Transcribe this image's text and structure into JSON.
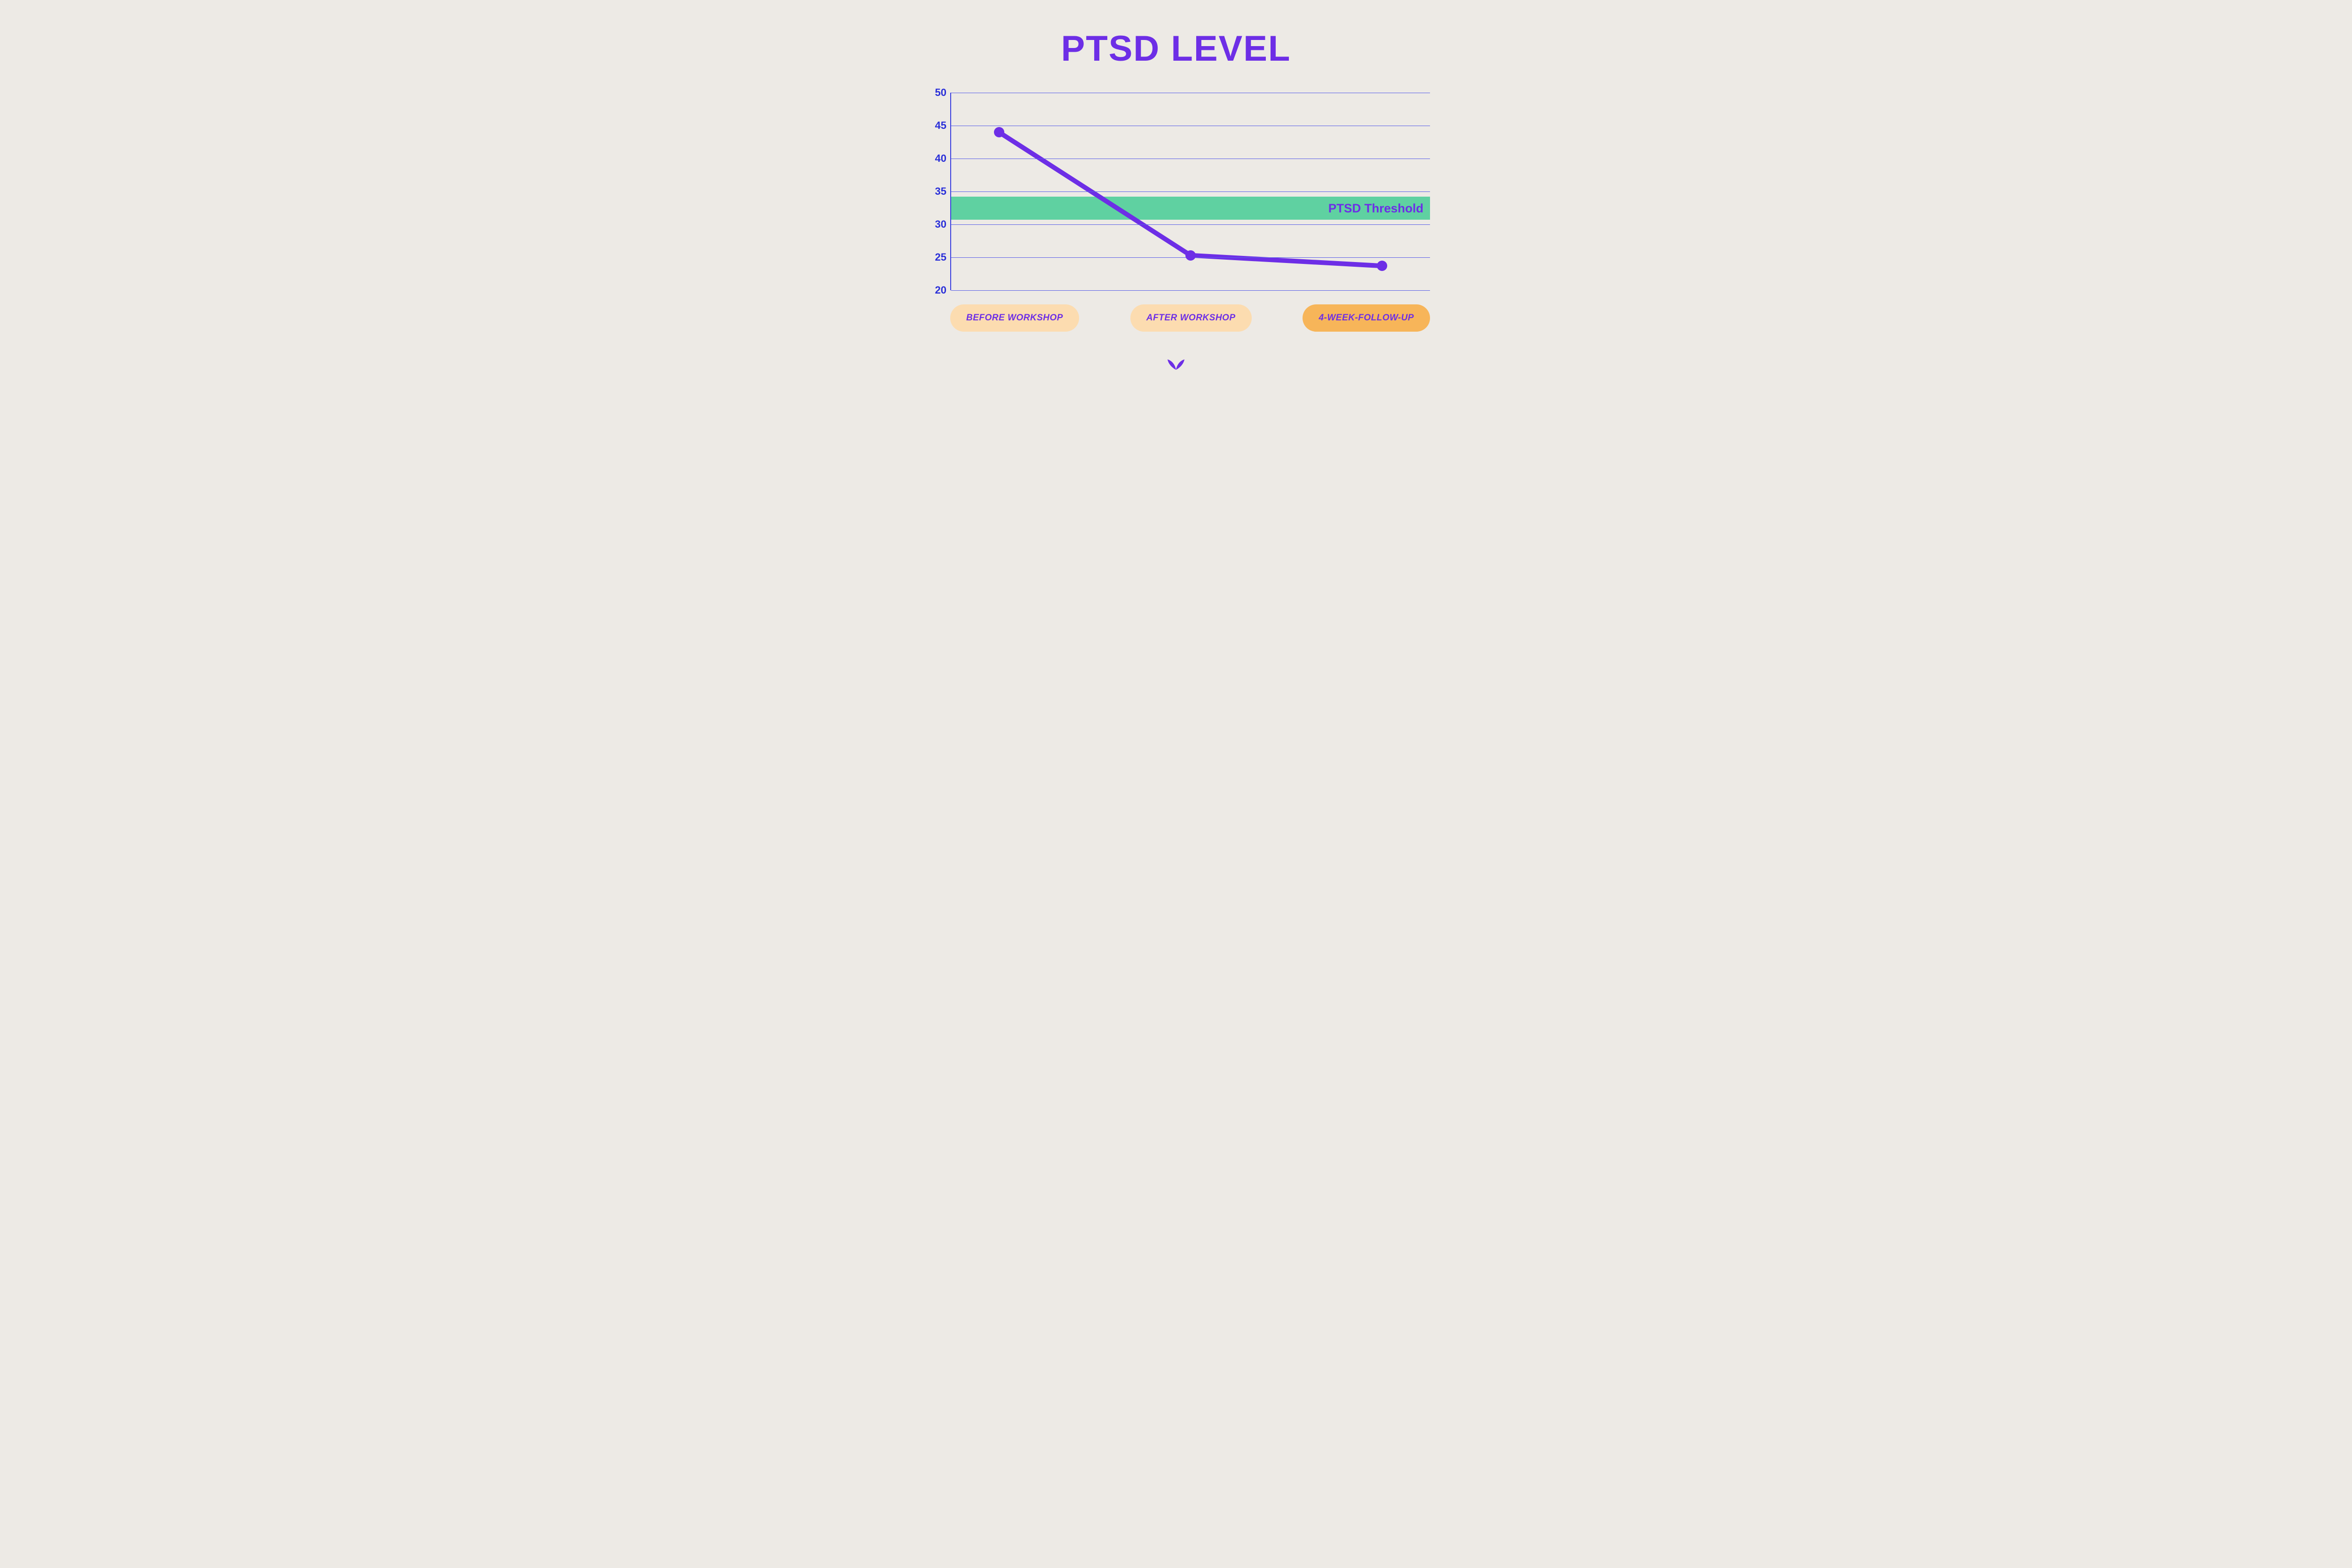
{
  "title": "PTSD LEVEL",
  "chart": {
    "type": "line",
    "background_color": "#edeae5",
    "grid_color": "#5a5fe8",
    "axis_color": "#3b3fe0",
    "ytick_color": "#2a2fd8",
    "ytick_fontsize": 22,
    "ylim": [
      20,
      50
    ],
    "ytick_step": 5,
    "yticks": [
      20,
      25,
      30,
      35,
      40,
      45,
      50
    ],
    "categories": [
      "BEFORE WORKSHOP",
      "AFTER WORKSHOP",
      "4-WEEK-FOLLOW-UP"
    ],
    "values": [
      44.0,
      25.3,
      23.7
    ],
    "x_positions_pct": [
      10,
      50,
      90
    ],
    "line_color": "#6d2ee6",
    "line_width": 10,
    "marker_color": "#6d2ee6",
    "marker_radius": 11,
    "threshold": {
      "label": "PTSD Threshold",
      "y_low": 30.7,
      "y_high": 34.2,
      "band_color": "#5fd1a1",
      "label_color": "#6d2ee6",
      "label_fontsize": 26
    },
    "pill_colors": [
      "#fcdcb0",
      "#fcdcb0",
      "#f7b559"
    ],
    "pill_text_color": "#6d2ee6",
    "pill_fontsize": 19
  },
  "title_color": "#6d2ee6",
  "title_fontsize": 76,
  "logo_color": "#6d2ee6"
}
